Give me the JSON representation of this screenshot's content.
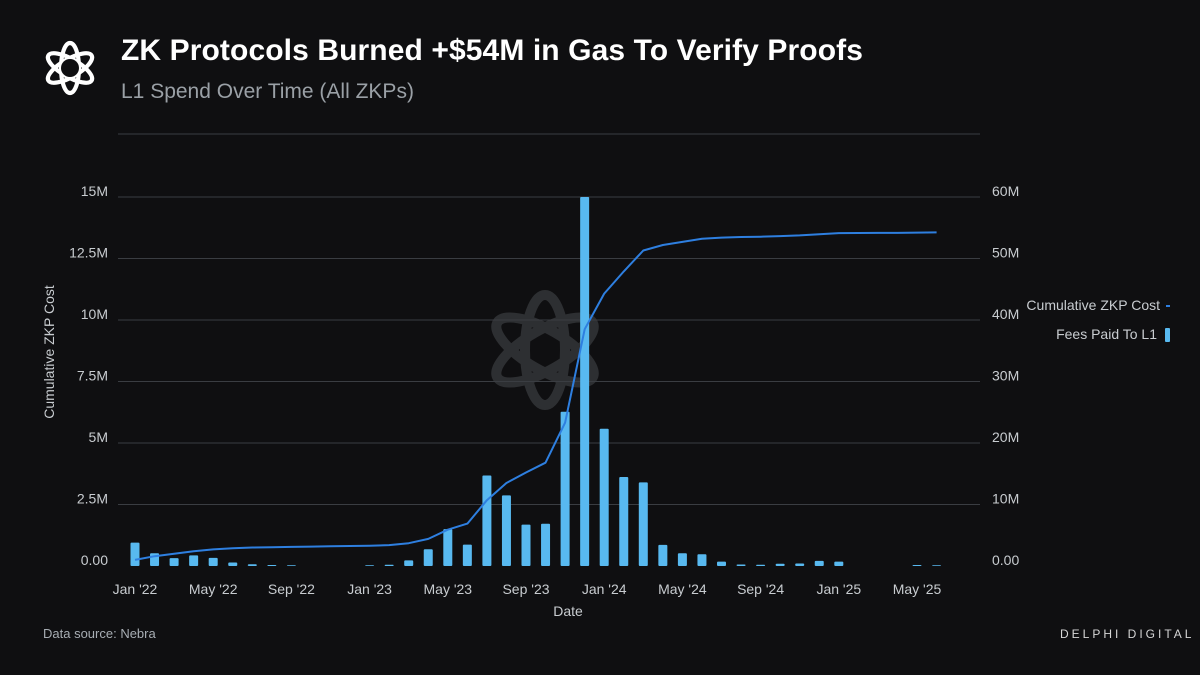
{
  "header": {
    "title": "ZK Protocols Burned +$54M in Gas To Verify Proofs",
    "subtitle": "L1 Spend Over Time (All ZKPs)"
  },
  "footer": {
    "source": "Data source: Nebra",
    "brand": "DELPHI DIGITAL"
  },
  "legend": {
    "line_label": "Cumulative ZKP Cost",
    "bar_label": "Fees Paid To L1"
  },
  "colors": {
    "background": "#0f0f11",
    "bar": "#58b9f0",
    "line": "#2e7fe0",
    "grid": "#3a3d42"
  },
  "chart_data": {
    "type": "bar",
    "xlabel": "Date",
    "ylabel": "Cumulative ZKP Cost",
    "x_range": [
      "2022-01",
      "2025-06"
    ],
    "x_ticks": [
      {
        "label": "Jan '22",
        "month": "2022-01"
      },
      {
        "label": "May '22",
        "month": "2022-05"
      },
      {
        "label": "Sep '22",
        "month": "2022-09"
      },
      {
        "label": "Jan '23",
        "month": "2023-01"
      },
      {
        "label": "May '23",
        "month": "2023-05"
      },
      {
        "label": "Sep '23",
        "month": "2023-09"
      },
      {
        "label": "Jan '24",
        "month": "2024-01"
      },
      {
        "label": "May '24",
        "month": "2024-05"
      },
      {
        "label": "Sep '24",
        "month": "2024-09"
      },
      {
        "label": "Jan '25",
        "month": "2025-01"
      },
      {
        "label": "May '25",
        "month": "2025-05"
      }
    ],
    "y_left": {
      "range": [
        0,
        15000000
      ],
      "ticks": [
        {
          "value": 0,
          "label": "0.00"
        },
        {
          "value": 2500000,
          "label": "2.5M"
        },
        {
          "value": 5000000,
          "label": "5M"
        },
        {
          "value": 7500000,
          "label": "7.5M"
        },
        {
          "value": 10000000,
          "label": "10M"
        },
        {
          "value": 12500000,
          "label": "12.5M"
        },
        {
          "value": 15000000,
          "label": "15M"
        }
      ]
    },
    "y_right": {
      "range": [
        0,
        60000000
      ],
      "ticks": [
        {
          "value": 0,
          "label": "0.00"
        },
        {
          "value": 10000000,
          "label": "10M"
        },
        {
          "value": 20000000,
          "label": "20M"
        },
        {
          "value": 30000000,
          "label": "30M"
        },
        {
          "value": 40000000,
          "label": "40M"
        },
        {
          "value": 50000000,
          "label": "50M"
        },
        {
          "value": 60000000,
          "label": "60M"
        }
      ]
    },
    "grid": true,
    "legend_position": "right",
    "series": [
      {
        "name": "Fees Paid To L1",
        "type": "bar",
        "axis": "left",
        "months": [
          "2022-01",
          "2022-02",
          "2022-03",
          "2022-04",
          "2022-05",
          "2022-06",
          "2022-07",
          "2022-08",
          "2022-09",
          "2022-10",
          "2022-11",
          "2022-12",
          "2023-01",
          "2023-02",
          "2023-03",
          "2023-04",
          "2023-05",
          "2023-06",
          "2023-07",
          "2023-08",
          "2023-09",
          "2023-10",
          "2023-11",
          "2023-12",
          "2024-01",
          "2024-02",
          "2024-03",
          "2024-04",
          "2024-05",
          "2024-06",
          "2024-07",
          "2024-08",
          "2024-09",
          "2024-10",
          "2024-11",
          "2024-12",
          "2025-01",
          "2025-02",
          "2025-03",
          "2025-04",
          "2025-05",
          "2025-06"
        ],
        "values": [
          950000,
          520000,
          320000,
          430000,
          330000,
          140000,
          70000,
          40000,
          30000,
          0,
          0,
          0,
          30000,
          50000,
          230000,
          680000,
          1500000,
          870000,
          3680000,
          2870000,
          1680000,
          1720000,
          6270000,
          15000000,
          5580000,
          3620000,
          3400000,
          860000,
          520000,
          480000,
          180000,
          60000,
          50000,
          90000,
          100000,
          210000,
          180000,
          0,
          0,
          0,
          40000,
          30000
        ]
      },
      {
        "name": "Cumulative ZKP Cost",
        "type": "line",
        "axis": "right",
        "months": [
          "2022-01",
          "2022-02",
          "2022-03",
          "2022-04",
          "2022-05",
          "2022-06",
          "2022-07",
          "2022-08",
          "2022-09",
          "2022-10",
          "2022-11",
          "2022-12",
          "2023-01",
          "2023-02",
          "2023-03",
          "2023-04",
          "2023-05",
          "2023-06",
          "2023-07",
          "2023-08",
          "2023-09",
          "2023-10",
          "2023-11",
          "2023-12",
          "2024-01",
          "2024-02",
          "2024-03",
          "2024-04",
          "2024-05",
          "2024-06",
          "2024-07",
          "2024-08",
          "2024-09",
          "2024-10",
          "2024-11",
          "2024-12",
          "2025-01",
          "2025-02",
          "2025-03",
          "2025-04",
          "2025-05",
          "2025-06"
        ],
        "values": [
          1000000,
          1600000,
          2000000,
          2400000,
          2700000,
          2900000,
          3000000,
          3050000,
          3100000,
          3150000,
          3200000,
          3250000,
          3300000,
          3400000,
          3700000,
          4400000,
          5900000,
          6900000,
          10700000,
          13500000,
          15200000,
          16800000,
          23300000,
          38500000,
          44300000,
          47900000,
          51300000,
          52200000,
          52700000,
          53200000,
          53400000,
          53500000,
          53550000,
          53650000,
          53750000,
          53950000,
          54130000,
          54150000,
          54160000,
          54170000,
          54210000,
          54240000
        ]
      }
    ]
  }
}
